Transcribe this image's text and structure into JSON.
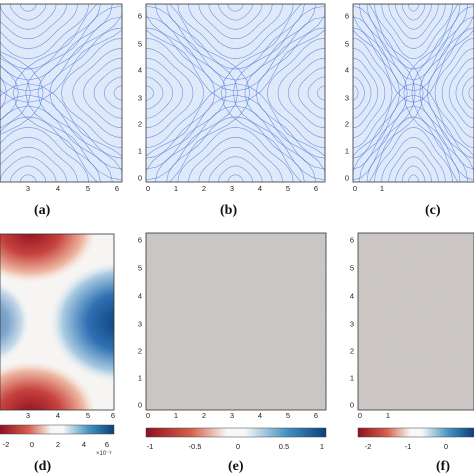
{
  "chart_data": [
    {
      "panel": "(a)",
      "type": "streamline",
      "x_ticks": [
        "3",
        "4",
        "5",
        "6"
      ],
      "y_ticks": [],
      "xlim": [
        0,
        6.2832
      ],
      "ylim": [
        0,
        6.2832
      ],
      "line_color": "#3b6fd6"
    },
    {
      "panel": "(b)",
      "type": "streamline",
      "x_ticks": [
        "0",
        "1",
        "2",
        "3",
        "4",
        "5",
        "6"
      ],
      "y_ticks": [
        "0",
        "1",
        "2",
        "3",
        "4",
        "5",
        "6"
      ],
      "xlim": [
        0,
        6.2832
      ],
      "ylim": [
        0,
        6.2832
      ],
      "line_color": "#3b6fd6"
    },
    {
      "panel": "(c)",
      "type": "streamline",
      "x_ticks": [
        "0",
        "1"
      ],
      "y_ticks": [
        "0",
        "1",
        "2",
        "3",
        "4",
        "5",
        "6"
      ],
      "xlim": [
        0,
        6.2832
      ],
      "ylim": [
        0,
        6.2832
      ],
      "line_color": "#3b6fd6"
    },
    {
      "panel": "(d)",
      "type": "heatmap",
      "x_ticks": [
        "3",
        "4",
        "5",
        "6"
      ],
      "y_ticks": [],
      "colorbar_ticks": [
        "-2",
        "0",
        "2",
        "4",
        "6"
      ],
      "colorbar_exponent": "×10⁻³",
      "colormap": [
        "#b2182b",
        "#f7f7f7",
        "#2166ac"
      ]
    },
    {
      "panel": "(e)",
      "type": "heatmap",
      "x_ticks": [
        "0",
        "1",
        "2",
        "3",
        "4",
        "5",
        "6"
      ],
      "y_ticks": [
        "0",
        "1",
        "2",
        "3",
        "4",
        "5",
        "6"
      ],
      "colorbar_ticks": [
        "-1",
        "-0.5",
        "0",
        "0.5",
        "1"
      ],
      "colormap": [
        "#b2182b",
        "#f7f7f7",
        "#2166ac"
      ],
      "field_color": "#d2cfcd"
    },
    {
      "panel": "(f)",
      "type": "heatmap",
      "x_ticks": [
        "0",
        "1"
      ],
      "y_ticks": [
        "0",
        "1",
        "2",
        "3",
        "4",
        "5",
        "6"
      ],
      "colorbar_ticks": [
        "-2",
        "-1",
        "0"
      ],
      "colormap": [
        "#b2182b",
        "#f7f7f7",
        "#2166ac"
      ],
      "field_color": "#d4cfcd"
    }
  ]
}
